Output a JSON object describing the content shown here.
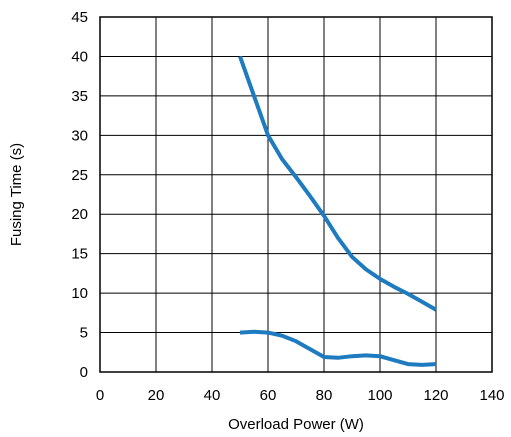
{
  "chart_data": {
    "type": "line",
    "title": "",
    "xlabel": "Overload Power (W)",
    "ylabel": "Fusing Time (s)",
    "xlim": [
      0,
      140
    ],
    "ylim": [
      0,
      45
    ],
    "x_ticks": [
      "0",
      "20",
      "40",
      "60",
      "80",
      "100",
      "120",
      "140"
    ],
    "y_ticks": [
      "0",
      "5",
      "10",
      "15",
      "20",
      "25",
      "30",
      "35",
      "40",
      "45"
    ],
    "grid": true,
    "legend": "none",
    "line_color": "#1f7bbf",
    "series": [
      {
        "x": [
          50,
          55,
          60,
          65,
          70,
          75,
          80,
          85,
          90,
          95,
          100,
          105,
          110,
          115,
          120
        ],
        "y": [
          40,
          35,
          30,
          27,
          24.7,
          22.3,
          19.8,
          17,
          14.6,
          13,
          11.8,
          10.8,
          9.9,
          8.9,
          7.9
        ]
      },
      {
        "x": [
          50,
          55,
          60,
          65,
          70,
          75,
          80,
          85,
          90,
          95,
          100,
          105,
          110,
          115,
          120
        ],
        "y": [
          5,
          5.1,
          5.0,
          4.6,
          3.9,
          2.9,
          1.9,
          1.8,
          2.0,
          2.1,
          2.0,
          1.5,
          1.0,
          0.9,
          1.0
        ]
      }
    ]
  }
}
